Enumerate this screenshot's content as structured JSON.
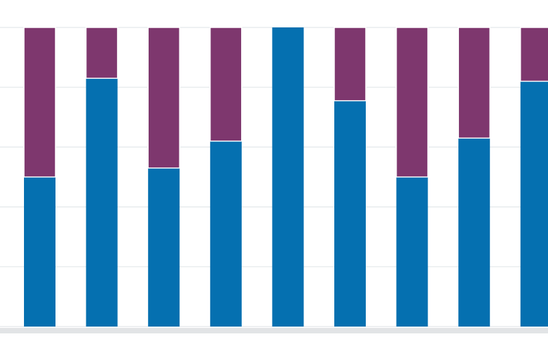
{
  "chart_data": {
    "type": "bar",
    "stacked": true,
    "categories": [
      "",
      "",
      "",
      "",
      "",
      "",
      "",
      "",
      ""
    ],
    "series": [
      {
        "values": [
          50,
          83,
          53,
          62,
          100,
          75.5,
          50,
          63,
          82
        ],
        "color": "#0570b0"
      },
      {
        "values": [
          50,
          17,
          47,
          38,
          0,
          24.5,
          50,
          37,
          18
        ],
        "color": "#7e376e"
      }
    ],
    "ylim": [
      0,
      100
    ],
    "grid": true,
    "title": "",
    "xlabel": "",
    "ylabel": ""
  }
}
